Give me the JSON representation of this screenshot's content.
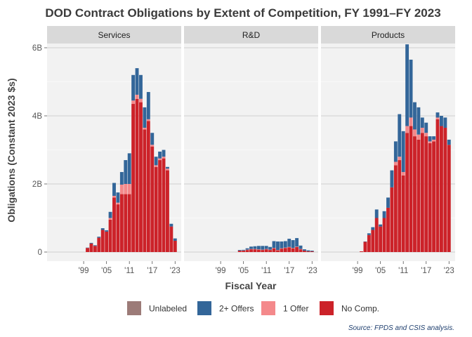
{
  "chart_data": {
    "type": "bar",
    "stacked": true,
    "title": "DOD Contract Obligations by Extent of Competition, FY 1991–FY 2023",
    "xlabel": "Fiscal Year",
    "ylabel": "Obligations (Constant 2023 $s)",
    "caption": "Source: FPDS and CSIS analysis.",
    "x_range": [
      1991,
      2023
    ],
    "ylim": [
      0,
      6.6
    ],
    "y_ticks": [
      {
        "value": 0,
        "label": "0"
      },
      {
        "value": 2,
        "label": "2B"
      },
      {
        "value": 4,
        "label": "4B"
      },
      {
        "value": 6,
        "label": "6B"
      }
    ],
    "x_ticks": [
      {
        "value": 1999,
        "label": "'99"
      },
      {
        "value": 2005,
        "label": "'05"
      },
      {
        "value": 2011,
        "label": "'11"
      },
      {
        "value": 2017,
        "label": "'17"
      },
      {
        "value": 2023,
        "label": "'23"
      }
    ],
    "grid": true,
    "legend_position": "bottom",
    "stack_order": [
      "No Comp.",
      "1 Offer",
      "2+ Offers",
      "Unlabeled"
    ],
    "legend_order": [
      "Unlabeled",
      "2+ Offers",
      "1 Offer",
      "No Comp."
    ],
    "series_colors": {
      "Unlabeled": "#9c7b78",
      "2+ Offers": "#336699",
      "1 Offer": "#f4898b",
      "No Comp.": "#cc2229"
    },
    "panels": [
      {
        "name": "Services",
        "years": [
          1991,
          1992,
          1993,
          1994,
          1995,
          1996,
          1997,
          1998,
          1999,
          2000,
          2001,
          2002,
          2003,
          2004,
          2005,
          2006,
          2007,
          2008,
          2009,
          2010,
          2011,
          2012,
          2013,
          2014,
          2015,
          2016,
          2017,
          2018,
          2019,
          2020,
          2021,
          2022,
          2023
        ],
        "series": [
          {
            "name": "No Comp.",
            "values": [
              0,
              0,
              0,
              0,
              0,
              0,
              0,
              0,
              0,
              0.12,
              0.25,
              0.18,
              0.42,
              0.65,
              0.6,
              0.95,
              1.6,
              1.4,
              1.7,
              1.7,
              1.7,
              4.35,
              4.5,
              4.4,
              3.6,
              3.85,
              3.1,
              2.5,
              2.7,
              2.75,
              2.4,
              0.75,
              0.33
            ]
          },
          {
            "name": "1 Offer",
            "values": [
              0,
              0,
              0,
              0,
              0,
              0,
              0,
              0,
              0,
              0,
              0,
              0,
              0,
              0,
              0,
              0.05,
              0.05,
              0.05,
              0.28,
              0.3,
              0.3,
              0.1,
              0.12,
              0.1,
              0.05,
              0.05,
              0.05,
              0.05,
              0.05,
              0.05,
              0.05,
              0,
              0
            ]
          },
          {
            "name": "2+ Offers",
            "values": [
              0,
              0,
              0,
              0,
              0,
              0,
              0,
              0,
              0,
              0.01,
              0.02,
              0.02,
              0.03,
              0.05,
              0.04,
              0.18,
              0.38,
              0.3,
              0.37,
              0.7,
              0.9,
              0.75,
              0.78,
              0.7,
              0.6,
              0.8,
              0.35,
              0.25,
              0.2,
              0.2,
              0.05,
              0.08,
              0.07
            ]
          }
        ]
      },
      {
        "name": "R&D",
        "years": [
          1991,
          1992,
          1993,
          1994,
          1995,
          1996,
          1997,
          1998,
          1999,
          2000,
          2001,
          2002,
          2003,
          2004,
          2005,
          2006,
          2007,
          2008,
          2009,
          2010,
          2011,
          2012,
          2013,
          2014,
          2015,
          2016,
          2017,
          2018,
          2019,
          2020,
          2021,
          2022,
          2023
        ],
        "series": [
          {
            "name": "No Comp.",
            "values": [
              0,
              0,
              0,
              0,
              0,
              0,
              0,
              0,
              0,
              0,
              0,
              0,
              0,
              0.04,
              0.04,
              0.06,
              0.08,
              0.08,
              0.07,
              0.06,
              0.08,
              0.06,
              0.11,
              0.05,
              0.1,
              0.12,
              0.14,
              0.11,
              0.15,
              0.08,
              0.04,
              0.02,
              0.02
            ]
          },
          {
            "name": "1 Offer",
            "values": [
              0,
              0,
              0,
              0,
              0,
              0,
              0,
              0,
              0,
              0,
              0,
              0,
              0,
              0,
              0.005,
              0.01,
              0.01,
              0.01,
              0.01,
              0.01,
              0.01,
              0.01,
              0.01,
              0.01,
              0.01,
              0.01,
              0.01,
              0.01,
              0.01,
              0.01,
              0,
              0,
              0
            ]
          },
          {
            "name": "2+ Offers",
            "values": [
              0,
              0,
              0,
              0,
              0,
              0,
              0,
              0,
              0,
              0,
              0,
              0,
              0,
              0.02,
              0.02,
              0.04,
              0.07,
              0.08,
              0.1,
              0.11,
              0.09,
              0.08,
              0.2,
              0.25,
              0.2,
              0.19,
              0.24,
              0.23,
              0.25,
              0.1,
              0.04,
              0.03,
              0.02
            ]
          }
        ]
      },
      {
        "name": "Products",
        "years": [
          1991,
          1992,
          1993,
          1994,
          1995,
          1996,
          1997,
          1998,
          1999,
          2000,
          2001,
          2002,
          2003,
          2004,
          2005,
          2006,
          2007,
          2008,
          2009,
          2010,
          2011,
          2012,
          2013,
          2014,
          2015,
          2016,
          2017,
          2018,
          2019,
          2020,
          2021,
          2022,
          2023
        ],
        "series": [
          {
            "name": "No Comp.",
            "values": [
              0,
              0,
              0,
              0,
              0,
              0,
              0,
              0,
              0,
              0.02,
              0.3,
              0.5,
              0.65,
              1.0,
              0.75,
              1.0,
              1.3,
              1.9,
              2.55,
              2.7,
              2.25,
              3.5,
              3.7,
              3.4,
              3.3,
              3.5,
              3.4,
              3.2,
              3.25,
              3.9,
              3.7,
              3.65,
              3.15
            ]
          },
          {
            "name": "1 Offer",
            "values": [
              0,
              0,
              0,
              0,
              0,
              0,
              0,
              0,
              0,
              0,
              0,
              0,
              0,
              0,
              0,
              0,
              0,
              0,
              0.1,
              0.1,
              0.1,
              0.2,
              0.25,
              0.2,
              0.15,
              0.15,
              0.1,
              0.05,
              0.05,
              0.05,
              0,
              0,
              0
            ]
          },
          {
            "name": "2+ Offers",
            "values": [
              0,
              0,
              0,
              0,
              0,
              0,
              0,
              0,
              0,
              0,
              0.01,
              0.05,
              0.08,
              0.25,
              0.06,
              0.2,
              0.3,
              0.5,
              0.6,
              1.25,
              1.2,
              2.4,
              1.7,
              0.8,
              0.8,
              0.3,
              0.3,
              0.15,
              0.1,
              0.15,
              0.3,
              0.3,
              0.15
            ]
          }
        ]
      }
    ]
  }
}
